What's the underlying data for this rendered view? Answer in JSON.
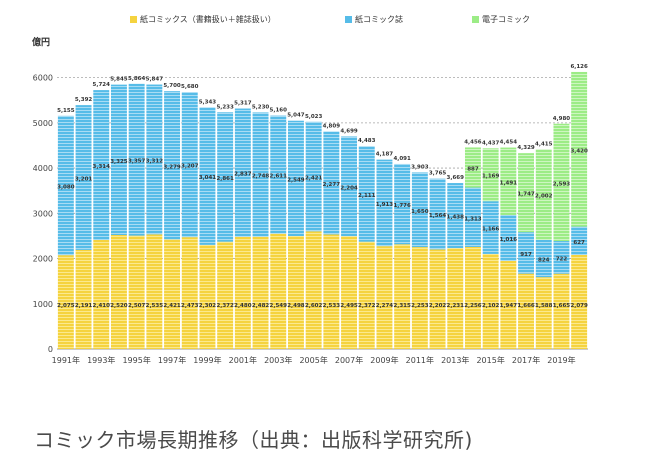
{
  "caption": "コミック市場長期推移（出典：出版科学研究所)",
  "chart_data": {
    "type": "bar",
    "stacked": true,
    "title": "",
    "ylabel": "億円",
    "xlabel": "",
    "ylim": [
      0,
      6500
    ],
    "yticks": [
      0,
      1000,
      2000,
      3000,
      4000,
      5000,
      6000
    ],
    "legend_position": "top",
    "colors": {
      "paper_comics": "#f5d33f",
      "paper_magazines": "#56bce8",
      "digital": "#9cec86",
      "grid": "#a6a6a6",
      "text": "#333333"
    },
    "categories": [
      "1991",
      "1992",
      "1993",
      "1994",
      "1995",
      "1996",
      "1997",
      "1998",
      "1999",
      "2000",
      "2001",
      "2002",
      "2003",
      "2004",
      "2005",
      "2006",
      "2007",
      "2008",
      "2009",
      "2010",
      "2011",
      "2012",
      "2013",
      "2014",
      "2015",
      "2016",
      "2017",
      "2018",
      "2019",
      "2020"
    ],
    "x_tick_labels": [
      "1991年",
      "",
      "1993年",
      "",
      "1995年",
      "",
      "1997年",
      "",
      "1999年",
      "",
      "2001年",
      "",
      "2003年",
      "",
      "2005年",
      "",
      "2007年",
      "",
      "2009年",
      "",
      "2011年",
      "",
      "2013年",
      "",
      "2015年",
      "",
      "2017年",
      "",
      "2019年",
      ""
    ],
    "series": [
      {
        "key": "paper_comics",
        "name": "紙コミックス（書籍扱い＋雑誌扱い）",
        "values": [
          2075,
          2191,
          2410,
          2520,
          2507,
          2535,
          2421,
          2473,
          2302,
          2372,
          2480,
          2482,
          2549,
          2498,
          2602,
          2533,
          2495,
          2372,
          2274,
          2315,
          2253,
          2202,
          2231,
          2256,
          2102,
          1947,
          1666,
          1588,
          1665,
          2079
        ]
      },
      {
        "key": "paper_magazines",
        "name": "紙コミック誌",
        "values": [
          3080,
          3201,
          3314,
          3325,
          3357,
          3312,
          3279,
          3207,
          3041,
          2861,
          2837,
          2748,
          2611,
          2549,
          2421,
          2277,
          2204,
          2111,
          1913,
          1776,
          1650,
          1564,
          1438,
          1313,
          1166,
          1016,
          917,
          824,
          722,
          627
        ]
      },
      {
        "key": "digital",
        "name": "電子コミック",
        "values": [
          0,
          0,
          0,
          0,
          0,
          0,
          0,
          0,
          0,
          0,
          0,
          0,
          0,
          0,
          0,
          0,
          0,
          0,
          0,
          0,
          0,
          0,
          0,
          887,
          1169,
          1491,
          1747,
          2002,
          2593,
          3420
        ]
      }
    ],
    "segment_labels": {
      "paper_comics": [
        "2,075",
        "2,191",
        "2,410",
        "2,520",
        "2,507",
        "2,535",
        "2,421",
        "2,473",
        "2,302",
        "2,372",
        "2,480",
        "2,482",
        "2,549",
        "2,498",
        "2,602",
        "2,533",
        "2,495",
        "2,372",
        "2,274",
        "2,315",
        "2,253",
        "2,202",
        "2,231",
        "2,256",
        "2,102",
        "1,947",
        "1,666",
        "1,588",
        "1,665",
        "2,079"
      ],
      "paper_magazines": [
        "3,080",
        "3,201",
        "3,314",
        "3,325",
        "3,357",
        "3,312",
        "3,279",
        "3,207",
        "3,041",
        "2,861",
        "2,837",
        "2,748",
        "2,611",
        "2,549",
        "2,421",
        "2,277",
        "2,204",
        "2,111",
        "1,913",
        "1,776",
        "1,650",
        "1,564",
        "1,438",
        "1,313",
        "1,166",
        "1,016",
        "917",
        "824",
        "722",
        "627"
      ],
      "digital": [
        "",
        "",
        "",
        "",
        "",
        "",
        "",
        "",
        "",
        "",
        "",
        "",
        "",
        "",
        "",
        "",
        "",
        "",
        "",
        "",
        "",
        "",
        "",
        "887",
        "1,169",
        "1,491",
        "1,747",
        "2,002",
        "2,593",
        "3,420"
      ]
    },
    "totals": [
      5155,
      5392,
      5724,
      5845,
      5864,
      5847,
      5700,
      5680,
      5343,
      5233,
      5317,
      5230,
      5160,
      5047,
      5023,
      4809,
      4699,
      4483,
      4187,
      4091,
      3903,
      3765,
      3669,
      4456,
      4437,
      4454,
      4329,
      4415,
      4980,
      6126
    ],
    "total_labels": [
      "5,155",
      "5,392",
      "5,724",
      "5,845",
      "5,864",
      "5,847",
      "5,700",
      "5,680",
      "5,343",
      "5,233",
      "5,317",
      "5,230",
      "5,160",
      "5,047",
      "5,023",
      "4,809",
      "4,699",
      "4,483",
      "4,187",
      "4,091",
      "3,903",
      "3,765",
      "3,669",
      "4,456",
      "4,437",
      "4,454",
      "4,329",
      "4,415",
      "4,980",
      "6,126"
    ]
  }
}
